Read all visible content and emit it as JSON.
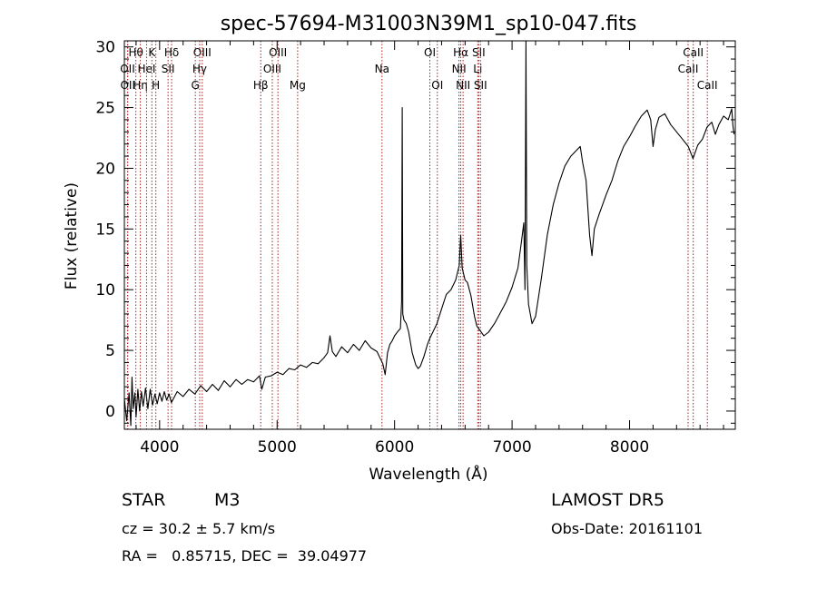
{
  "chart_data": {
    "type": "line",
    "title": "spec-57694-M31003N39M1_sp10-047.fits",
    "xlabel": "Wavelength (Å)",
    "ylabel": "Flux (relative)",
    "xlim": [
      3700,
      8900
    ],
    "ylim": [
      -1.5,
      30.5
    ],
    "xticks": [
      4000,
      5000,
      6000,
      7000,
      8000
    ],
    "yticks": [
      0,
      5,
      10,
      15,
      20,
      25,
      30
    ],
    "grid": false,
    "series": [
      {
        "values": [
          [
            3700,
            1.0
          ],
          [
            3720,
            -0.8
          ],
          [
            3740,
            1.5
          ],
          [
            3755,
            -1.2
          ],
          [
            3765,
            2.8
          ],
          [
            3775,
            0.2
          ],
          [
            3790,
            1.5
          ],
          [
            3800,
            -0.5
          ],
          [
            3815,
            1.8
          ],
          [
            3830,
            0.0
          ],
          [
            3845,
            1.6
          ],
          [
            3860,
            0.4
          ],
          [
            3880,
            1.9
          ],
          [
            3900,
            0.2
          ],
          [
            3920,
            1.8
          ],
          [
            3940,
            0.5
          ],
          [
            3960,
            1.4
          ],
          [
            3980,
            0.6
          ],
          [
            4000,
            1.5
          ],
          [
            4020,
            0.8
          ],
          [
            4040,
            1.6
          ],
          [
            4060,
            0.9
          ],
          [
            4080,
            1.4
          ],
          [
            4100,
            0.7
          ],
          [
            4150,
            1.6
          ],
          [
            4200,
            1.2
          ],
          [
            4250,
            1.8
          ],
          [
            4300,
            1.4
          ],
          [
            4350,
            2.1
          ],
          [
            4400,
            1.6
          ],
          [
            4450,
            2.2
          ],
          [
            4500,
            1.7
          ],
          [
            4550,
            2.5
          ],
          [
            4600,
            2.0
          ],
          [
            4650,
            2.6
          ],
          [
            4700,
            2.2
          ],
          [
            4750,
            2.6
          ],
          [
            4800,
            2.4
          ],
          [
            4850,
            2.9
          ],
          [
            4870,
            1.8
          ],
          [
            4900,
            2.8
          ],
          [
            4950,
            2.9
          ],
          [
            5000,
            3.2
          ],
          [
            5050,
            3.0
          ],
          [
            5100,
            3.5
          ],
          [
            5150,
            3.4
          ],
          [
            5200,
            3.8
          ],
          [
            5250,
            3.6
          ],
          [
            5300,
            4.0
          ],
          [
            5350,
            3.9
          ],
          [
            5400,
            4.4
          ],
          [
            5430,
            4.8
          ],
          [
            5450,
            6.2
          ],
          [
            5470,
            4.9
          ],
          [
            5500,
            4.5
          ],
          [
            5550,
            5.3
          ],
          [
            5600,
            4.8
          ],
          [
            5650,
            5.5
          ],
          [
            5700,
            5.0
          ],
          [
            5750,
            5.8
          ],
          [
            5800,
            5.2
          ],
          [
            5850,
            4.9
          ],
          [
            5880,
            4.3
          ],
          [
            5900,
            3.9
          ],
          [
            5920,
            3.0
          ],
          [
            5940,
            4.8
          ],
          [
            5960,
            5.5
          ],
          [
            5980,
            5.8
          ],
          [
            6000,
            6.2
          ],
          [
            6030,
            6.6
          ],
          [
            6050,
            6.8
          ],
          [
            6060,
            9.0
          ],
          [
            6065,
            25.0
          ],
          [
            6070,
            8.0
          ],
          [
            6080,
            7.5
          ],
          [
            6100,
            7.2
          ],
          [
            6120,
            6.5
          ],
          [
            6150,
            4.8
          ],
          [
            6180,
            3.8
          ],
          [
            6200,
            3.5
          ],
          [
            6220,
            3.7
          ],
          [
            6250,
            4.5
          ],
          [
            6280,
            5.5
          ],
          [
            6300,
            6.0
          ],
          [
            6330,
            6.6
          ],
          [
            6360,
            7.2
          ],
          [
            6400,
            8.4
          ],
          [
            6440,
            9.6
          ],
          [
            6480,
            10.0
          ],
          [
            6520,
            10.8
          ],
          [
            6550,
            12.0
          ],
          [
            6563,
            14.5
          ],
          [
            6575,
            11.8
          ],
          [
            6600,
            10.8
          ],
          [
            6620,
            10.6
          ],
          [
            6650,
            9.5
          ],
          [
            6680,
            7.8
          ],
          [
            6700,
            7.0
          ],
          [
            6730,
            6.6
          ],
          [
            6760,
            6.2
          ],
          [
            6800,
            6.5
          ],
          [
            6850,
            7.2
          ],
          [
            6900,
            8.1
          ],
          [
            6950,
            9.0
          ],
          [
            7000,
            10.2
          ],
          [
            7050,
            11.8
          ],
          [
            7080,
            14.0
          ],
          [
            7100,
            15.5
          ],
          [
            7110,
            10.0
          ],
          [
            7118,
            30.5
          ],
          [
            7125,
            12.0
          ],
          [
            7140,
            8.8
          ],
          [
            7170,
            7.2
          ],
          [
            7200,
            7.8
          ],
          [
            7250,
            11.0
          ],
          [
            7300,
            14.5
          ],
          [
            7350,
            17.0
          ],
          [
            7400,
            18.8
          ],
          [
            7450,
            20.2
          ],
          [
            7500,
            21.0
          ],
          [
            7550,
            21.5
          ],
          [
            7580,
            21.8
          ],
          [
            7600,
            20.5
          ],
          [
            7630,
            19.0
          ],
          [
            7660,
            14.5
          ],
          [
            7680,
            12.8
          ],
          [
            7700,
            15.0
          ],
          [
            7740,
            16.2
          ],
          [
            7800,
            17.8
          ],
          [
            7850,
            19.0
          ],
          [
            7900,
            20.6
          ],
          [
            7950,
            21.8
          ],
          [
            8000,
            22.6
          ],
          [
            8050,
            23.5
          ],
          [
            8100,
            24.3
          ],
          [
            8150,
            24.8
          ],
          [
            8180,
            24.0
          ],
          [
            8200,
            21.8
          ],
          [
            8220,
            23.2
          ],
          [
            8250,
            24.2
          ],
          [
            8300,
            24.5
          ],
          [
            8350,
            23.6
          ],
          [
            8400,
            23.0
          ],
          [
            8450,
            22.4
          ],
          [
            8500,
            21.8
          ],
          [
            8540,
            20.8
          ],
          [
            8580,
            21.9
          ],
          [
            8620,
            22.4
          ],
          [
            8660,
            23.4
          ],
          [
            8700,
            23.8
          ],
          [
            8730,
            22.8
          ],
          [
            8760,
            23.6
          ],
          [
            8800,
            24.3
          ],
          [
            8840,
            24.0
          ],
          [
            8870,
            24.9
          ],
          [
            8880,
            23.5
          ],
          [
            8890,
            22.8
          ]
        ]
      }
    ],
    "line_markers": [
      {
        "label": "Hθ",
        "wavelength": 3798,
        "row": 1
      },
      {
        "label": "OII",
        "wavelength": 3727,
        "row": 2
      },
      {
        "label": "OII",
        "wavelength": 3729,
        "row": 3
      },
      {
        "label": "Hη",
        "wavelength": 3836,
        "row": 3
      },
      {
        "label": "K",
        "wavelength": 3934,
        "row": 1
      },
      {
        "label": "HeI",
        "wavelength": 3889,
        "row": 2
      },
      {
        "label": "H",
        "wavelength": 3968,
        "row": 3
      },
      {
        "label": "Hδ",
        "wavelength": 4102,
        "row": 1
      },
      {
        "label": "SII",
        "wavelength": 4072,
        "row": 2
      },
      {
        "label": "OIII",
        "wavelength": 4363,
        "row": 1
      },
      {
        "label": "Hγ",
        "wavelength": 4341,
        "row": 2
      },
      {
        "label": "G",
        "wavelength": 4304,
        "row": 3
      },
      {
        "label": "Hβ",
        "wavelength": 4861,
        "row": 3
      },
      {
        "label": "OIII",
        "wavelength": 5007,
        "row": 1
      },
      {
        "label": "OIII",
        "wavelength": 4959,
        "row": 2
      },
      {
        "label": "Mg",
        "wavelength": 5175,
        "row": 3
      },
      {
        "label": "Na",
        "wavelength": 5893,
        "row": 2
      },
      {
        "label": "OI",
        "wavelength": 6300,
        "row": 1
      },
      {
        "label": "OI",
        "wavelength": 6364,
        "row": 3
      },
      {
        "label": "Hα",
        "wavelength": 6563,
        "row": 1
      },
      {
        "label": "NII",
        "wavelength": 6548,
        "row": 2
      },
      {
        "label": "NII",
        "wavelength": 6583,
        "row": 3
      },
      {
        "label": "SII",
        "wavelength": 6716,
        "row": 1
      },
      {
        "label": "Li",
        "wavelength": 6708,
        "row": 2
      },
      {
        "label": "SII",
        "wavelength": 6731,
        "row": 3
      },
      {
        "label": "CaII",
        "wavelength": 8542,
        "row": 1
      },
      {
        "label": "CaII",
        "wavelength": 8498,
        "row": 2
      },
      {
        "label": "CaII",
        "wavelength": 8662,
        "row": 3
      }
    ],
    "marker_color": "#aa2222",
    "line_color": "#000000"
  },
  "footer": {
    "class_label": "STAR",
    "subclass": "M3",
    "survey": "LAMOST DR5",
    "cz": "cz = 30.2 ± 5.7 km/s",
    "obs_date": "Obs-Date: 20161101",
    "coords": "RA =   0.85715, DEC =  39.04977"
  }
}
